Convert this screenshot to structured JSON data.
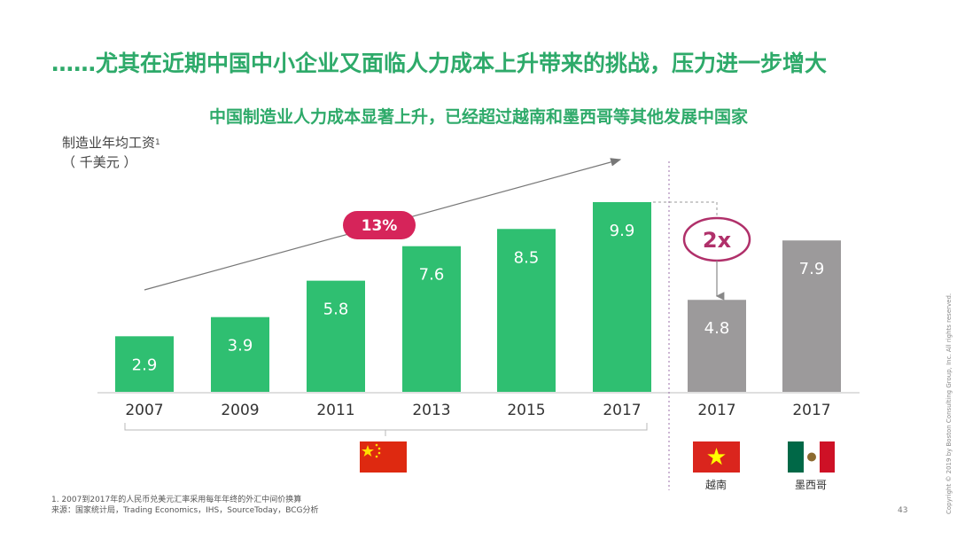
{
  "headline": "……尤其在近期中国中小企业又面临人力成本上升带来的挑战，压力进一步增大",
  "subtitle": "中国制造业人力成本显著上升，已经超过越南和墨西哥等其他发展中国家",
  "unit_label": {
    "line1": "制造业年均工资",
    "sup": "1",
    "line2": "（ 千美元 ）"
  },
  "chart_data": {
    "type": "bar",
    "title": "中国制造业人力成本显著上升，已经超过越南和墨西哥等其他发展中国家",
    "ylabel": "制造业年均工资（千美元）",
    "categories": [
      "2007",
      "2009",
      "2011",
      "2013",
      "2015",
      "2017",
      "2017",
      "2017"
    ],
    "values": [
      2.9,
      3.9,
      5.8,
      7.6,
      8.5,
      9.9,
      4.8,
      7.9
    ],
    "country_groups": [
      "中国",
      "中国",
      "中国",
      "中国",
      "中国",
      "中国",
      "越南",
      "墨西哥"
    ],
    "colors": [
      "#2fbf71",
      "#2fbf71",
      "#2fbf71",
      "#2fbf71",
      "#2fbf71",
      "#2fbf71",
      "#9c9a9b",
      "#9c9a9b"
    ],
    "ylim": [
      0,
      10.5
    ],
    "annotations": [
      {
        "text": "13%",
        "type": "growth-arrow",
        "color": "#d6245a"
      },
      {
        "text": "2x",
        "type": "comparison",
        "color": "#b0306a"
      }
    ],
    "group_labels": [
      "越南",
      "墨西哥"
    ]
  },
  "footnote_lines": [
    "1. 2007到2017年的人民币兑美元汇率采用每年年终的外汇中间价换算",
    "来源：国家统计局，Trading Economics，IHS，SourceToday，BCG分析"
  ],
  "page_number": "43",
  "copyright": "Copyright © 2019 by Boston Consulting Group, Inc. All rights reserved.",
  "colors": {
    "accent_green": "#2eaa6a",
    "bar_green": "#2fbf71",
    "bar_gray": "#9c9a9b",
    "annotation_pink": "#d6245a",
    "divider_purple": "#9b6fa8"
  }
}
